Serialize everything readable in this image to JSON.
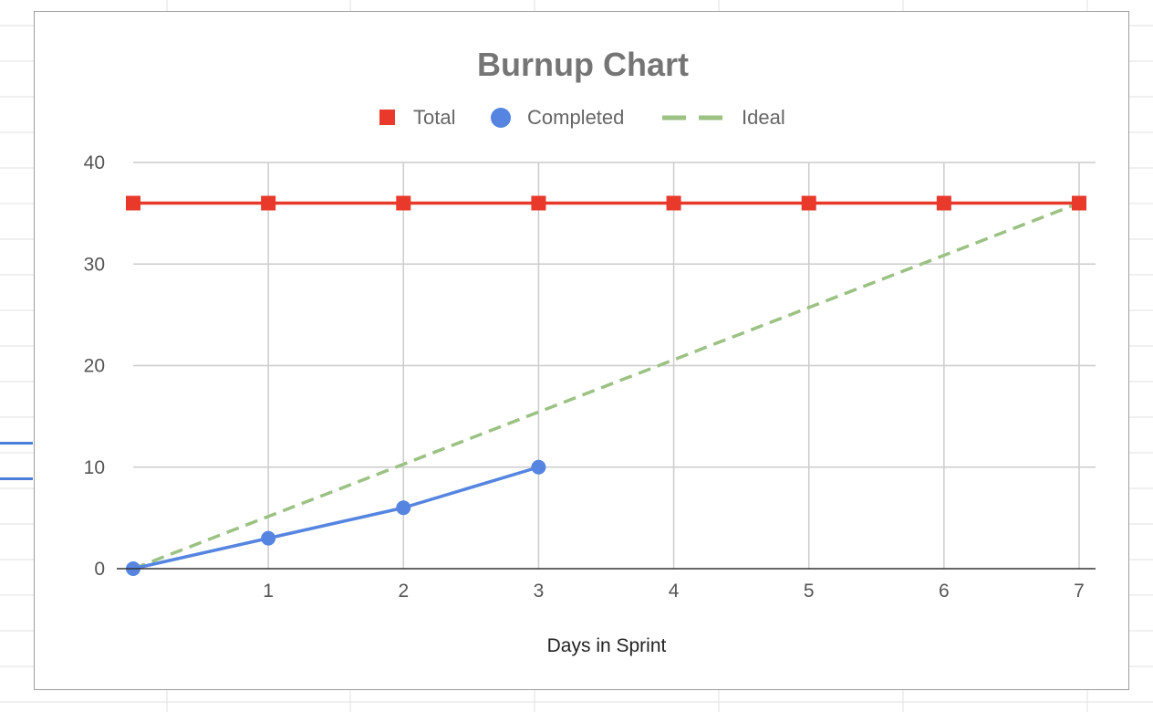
{
  "chart_data": {
    "type": "line",
    "title": "Burnup Chart",
    "xlabel": "Days in Sprint",
    "ylabel": "",
    "xlim": [
      0,
      7
    ],
    "ylim": [
      0,
      40
    ],
    "x_ticks": [
      1,
      2,
      3,
      4,
      5,
      6,
      7
    ],
    "y_ticks": [
      0,
      10,
      20,
      30,
      40
    ],
    "grid": true,
    "legend_position": "top",
    "series": [
      {
        "name": "Total",
        "marker": "square",
        "line_style": "solid",
        "color": "#e8392b",
        "x": [
          0,
          1,
          2,
          3,
          4,
          5,
          6,
          7
        ],
        "values": [
          36,
          36,
          36,
          36,
          36,
          36,
          36,
          36
        ]
      },
      {
        "name": "Completed",
        "marker": "circle",
        "line_style": "solid",
        "color": "#5585e0",
        "x": [
          0,
          1,
          2,
          3
        ],
        "values": [
          0,
          3,
          6,
          10
        ]
      },
      {
        "name": "Ideal",
        "marker": "none",
        "line_style": "dashed",
        "color": "#9bc283",
        "x": [
          0,
          7
        ],
        "values": [
          0,
          36
        ]
      }
    ]
  }
}
